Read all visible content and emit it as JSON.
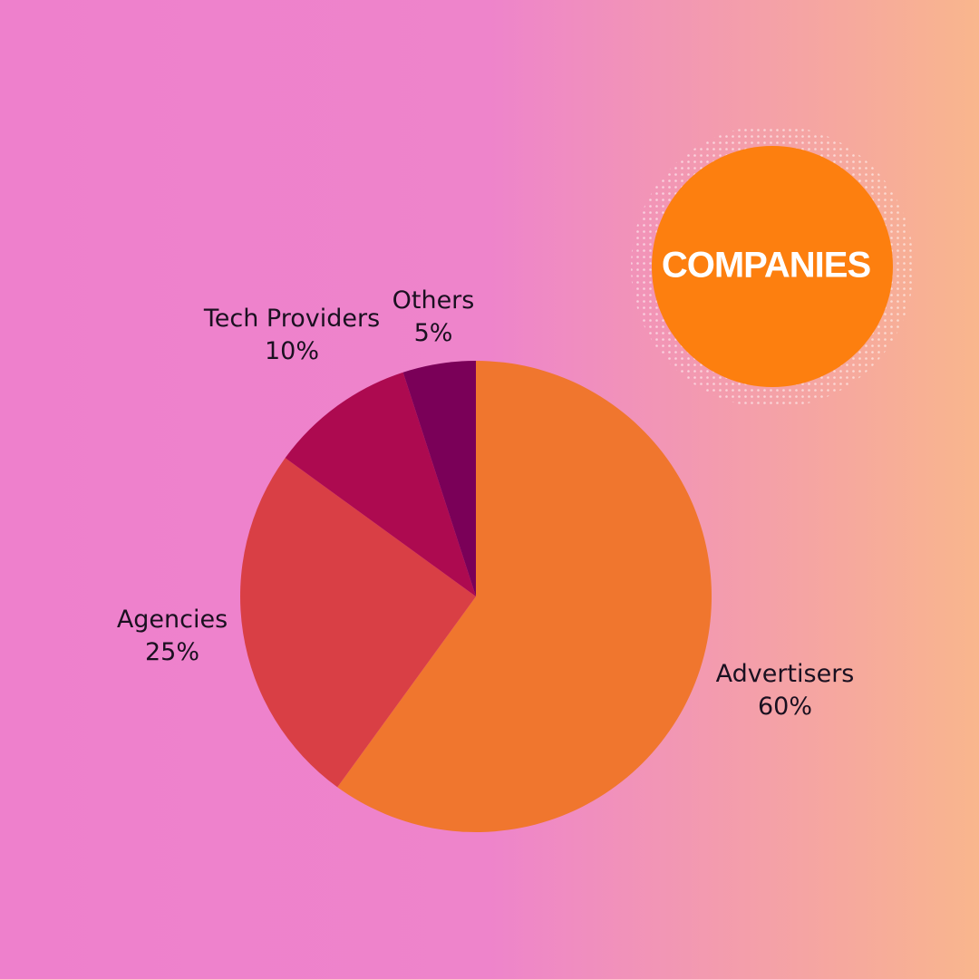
{
  "chart_data": {
    "type": "pie",
    "title": "COMPANIES",
    "categories": [
      "Advertisers",
      "Agencies",
      "Tech Providers",
      "Others"
    ],
    "values": [
      60,
      25,
      10,
      5
    ],
    "value_labels": [
      "60%",
      "25%",
      "10%",
      "5%"
    ],
    "colors": [
      "#f0762e",
      "#d93f45",
      "#ad0a50",
      "#7a0058"
    ]
  }
}
